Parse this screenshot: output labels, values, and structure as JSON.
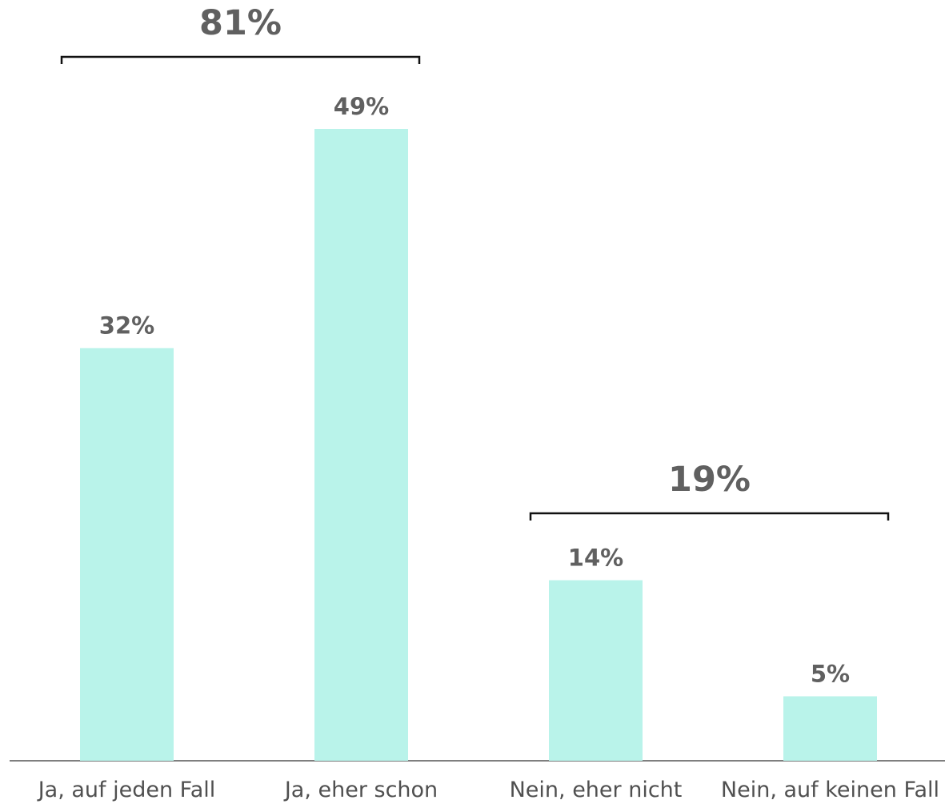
{
  "chart_data": {
    "type": "bar",
    "categories": [
      "Ja, auf jeden Fall",
      "Ja, eher schon",
      "Nein, eher nicht",
      "Nein, auf keinen Fall"
    ],
    "values": [
      32,
      49,
      14,
      5
    ],
    "value_labels": [
      "32%",
      "49%",
      "14%",
      "5%"
    ],
    "ylim": [
      0,
      56
    ],
    "grid": false,
    "bar_color": "#b9f3ea",
    "label_color": "#606060",
    "groups": [
      {
        "label": "81%",
        "value": 81,
        "from": 0,
        "to": 1
      },
      {
        "label": "19%",
        "value": 19,
        "from": 2,
        "to": 3
      }
    ]
  }
}
